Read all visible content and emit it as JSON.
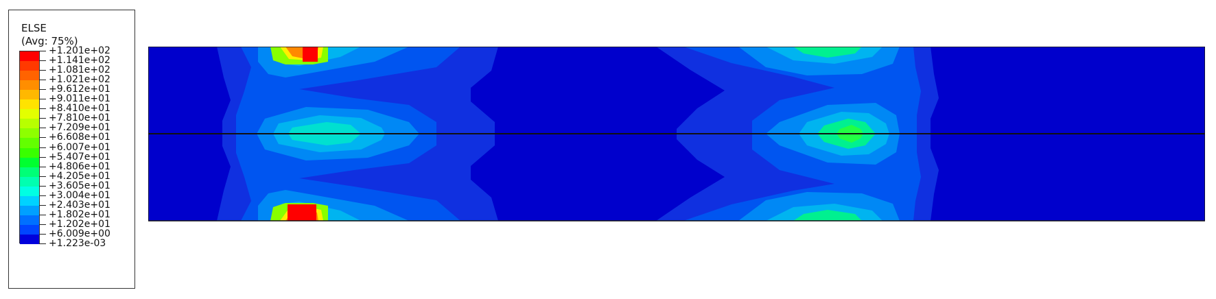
{
  "legend": {
    "title": "ELSE",
    "subtitle": "(Avg: 75%)",
    "values": [
      "+1.201e+02",
      "+1.141e+02",
      "+1.081e+02",
      "+1.021e+02",
      "+9.612e+01",
      "+9.011e+01",
      "+8.410e+01",
      "+7.810e+01",
      "+7.209e+01",
      "+6.608e+01",
      "+6.007e+01",
      "+5.407e+01",
      "+4.806e+01",
      "+4.205e+01",
      "+3.605e+01",
      "+3.004e+01",
      "+2.403e+01",
      "+1.802e+01",
      "+1.202e+01",
      "+6.009e+00",
      "+1.223e-03"
    ],
    "colors": [
      "#ff0000",
      "#ff3900",
      "#ff6300",
      "#ff8e00",
      "#ffb800",
      "#ffe300",
      "#e3ff00",
      "#b8ff00",
      "#8eff00",
      "#63ff00",
      "#39ff00",
      "#00ff30",
      "#00ff77",
      "#00ffb0",
      "#00ffe3",
      "#00d2ff",
      "#00a0ff",
      "#0070ff",
      "#0045ff",
      "#0000dc"
    ]
  },
  "plot": {
    "background_color": "#0000cc",
    "hotspot_color": "#ff0000",
    "contour_colors": [
      "#0022e6",
      "#0055f0",
      "#0088f5",
      "#00b4f0",
      "#00e0d0",
      "#00f090",
      "#22ff44",
      "#88ff00",
      "#ffee00",
      "#ff8800"
    ]
  }
}
